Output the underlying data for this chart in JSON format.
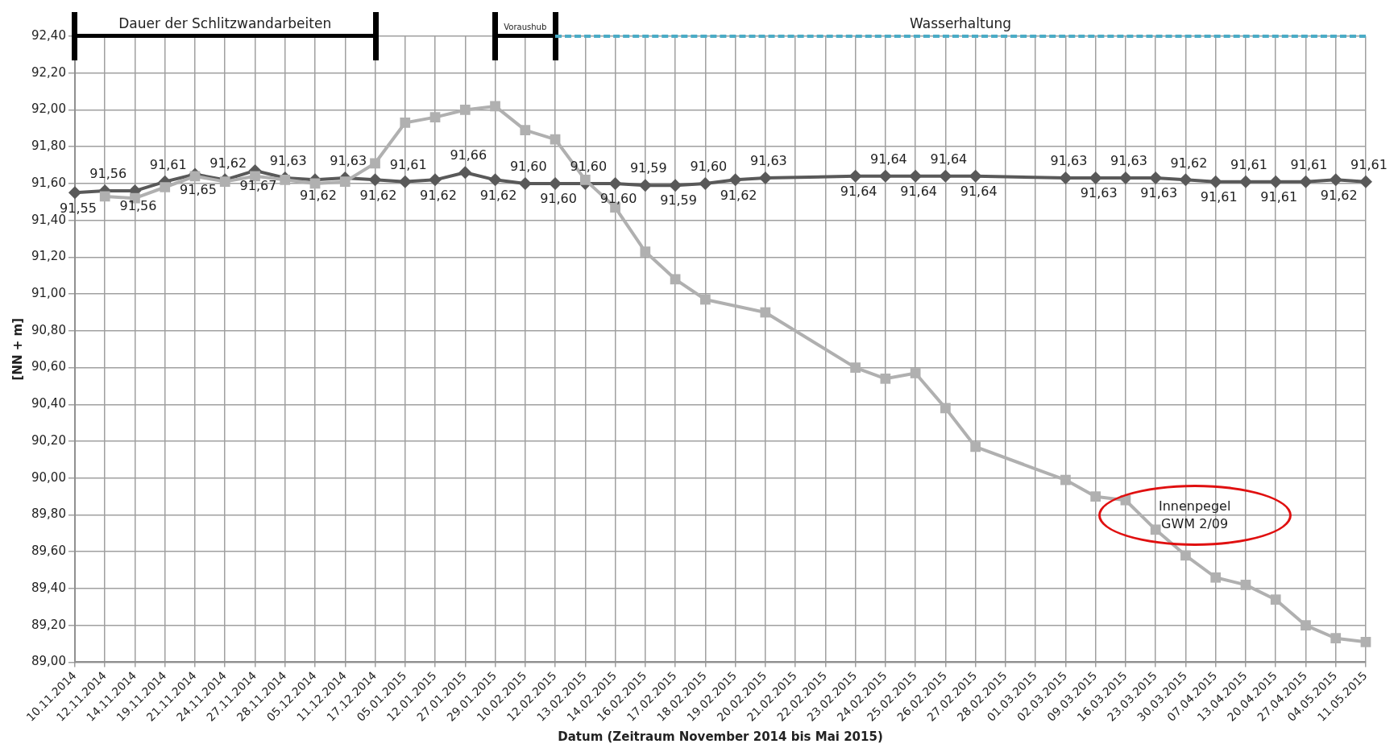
{
  "chart_data": {
    "type": "line",
    "xlabel": "Datum (Zeitraum November 2014 bis Mai 2015)",
    "ylabel": "[NN + m]",
    "categories": [
      "10.11.2014",
      "12.11.2014",
      "14.11.2014",
      "19.11.2014",
      "21.11.2014",
      "24.11.2014",
      "27.11.2014",
      "28.11.2014",
      "05.12.2014",
      "11.12.2014",
      "17.12.2014",
      "05.01.2015",
      "12.01.2015",
      "27.01.2015",
      "29.01.2015",
      "10.02.2015",
      "12.02.2015",
      "13.02.2015",
      "14.02.2015",
      "16.02.2015",
      "17.02.2015",
      "18.02.2015",
      "19.02.2015",
      "20.02.2015",
      "21.02.2015",
      "22.02.2015",
      "23.02.2015",
      "24.02.2015",
      "25.02.2015",
      "26.02.2015",
      "27.02.2015",
      "28.02.2015",
      "01.03.2015",
      "02.03.2015",
      "09.03.2015",
      "16.03.2015",
      "23.03.2015",
      "30.03.2015",
      "07.04.2015",
      "13.04.2015",
      "20.04.2015",
      "27.04.2015",
      "04.05.2015",
      "11.05.2015"
    ],
    "series": [
      {
        "color": "#b0b0b0",
        "marker": "square",
        "values": [
          null,
          91.53,
          91.52,
          91.58,
          91.64,
          91.61,
          91.64,
          91.62,
          91.6,
          91.61,
          91.71,
          91.93,
          91.96,
          92.0,
          92.02,
          91.89,
          91.84,
          91.62,
          91.47,
          91.23,
          91.08,
          90.97,
          null,
          90.9,
          null,
          null,
          90.6,
          90.54,
          90.57,
          90.38,
          90.17,
          null,
          null,
          89.99,
          89.9,
          89.88,
          89.72,
          89.58,
          89.46,
          89.42,
          89.34,
          89.2,
          89.13,
          89.11
        ]
      },
      {
        "color": "#595959",
        "marker": "diamond",
        "values": [
          91.55,
          91.56,
          91.56,
          91.61,
          91.65,
          91.62,
          91.67,
          91.63,
          91.62,
          91.63,
          91.62,
          91.61,
          91.62,
          91.66,
          91.62,
          91.6,
          91.6,
          91.6,
          91.6,
          91.59,
          91.59,
          91.6,
          91.62,
          91.63,
          null,
          null,
          91.64,
          91.64,
          91.64,
          91.64,
          91.64,
          null,
          null,
          91.63,
          91.63,
          91.63,
          91.63,
          91.62,
          91.61,
          91.61,
          91.61,
          91.61,
          91.62,
          91.61
        ],
        "value_labels": [
          "91,55",
          "91,56",
          "91,56",
          "91,61",
          "91,65",
          "91,62",
          "91,67",
          "91,63",
          "91,62",
          "91,63",
          "91,62",
          "91,61",
          "91,62",
          "91,66",
          "91,62",
          "91,60",
          "91,60",
          "91,60",
          "91,60",
          "91,59",
          "91,59",
          "91,60",
          "91,62",
          "91,63",
          null,
          null,
          "91,64",
          "91,64",
          "91,64",
          "91,64",
          "91,64",
          null,
          null,
          "91,63",
          "91,63",
          "91,63",
          "91,63",
          "91,62",
          "91,61",
          "91,61",
          "91,61",
          "91,61",
          "91,62",
          "91,61"
        ]
      }
    ],
    "ylim": [
      89.0,
      92.4
    ],
    "yticks": [
      {
        "value": 89.0,
        "label": "89,00"
      },
      {
        "value": 89.2,
        "label": "89,20"
      },
      {
        "value": 89.4,
        "label": "89,40"
      },
      {
        "value": 89.6,
        "label": "89,60"
      },
      {
        "value": 89.8,
        "label": "89,80"
      },
      {
        "value": 90.0,
        "label": "90,00"
      },
      {
        "value": 90.2,
        "label": "90,20"
      },
      {
        "value": 90.4,
        "label": "90,40"
      },
      {
        "value": 90.6,
        "label": "90,60"
      },
      {
        "value": 90.8,
        "label": "90,80"
      },
      {
        "value": 91.0,
        "label": "91,00"
      },
      {
        "value": 91.2,
        "label": "91,20"
      },
      {
        "value": 91.4,
        "label": "91,40"
      },
      {
        "value": 91.6,
        "label": "91,60"
      },
      {
        "value": 91.8,
        "label": "91,80"
      },
      {
        "value": 92.0,
        "label": "92,00"
      },
      {
        "value": 92.2,
        "label": "92,20"
      },
      {
        "value": 92.4,
        "label": "92,40"
      }
    ],
    "annotations": [
      "Dauer der Schlitzwandarbeiten",
      "Voraushub",
      "Wasserhaltung",
      "Innenpegel GWM 2/09"
    ],
    "grid": true,
    "legend": false
  }
}
